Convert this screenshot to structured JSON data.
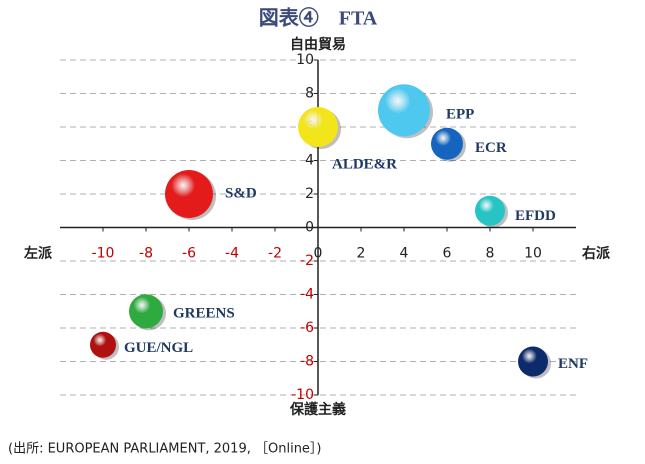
{
  "chart_data": {
    "type": "bubble",
    "title": "図表④　FTA",
    "y_label_top": "自由貿易",
    "y_label_bottom": "保護主義",
    "x_label_left": "左派",
    "x_label_right": "右派",
    "source": "(出所: EUROPEAN PARLIAMENT, 2019, ［Online］)",
    "xlim": [
      -12,
      12
    ],
    "ylim": [
      -10,
      10
    ],
    "xticks": [
      -10,
      -8,
      -6,
      -4,
      -2,
      0,
      2,
      4,
      6,
      8,
      10
    ],
    "yticks": [
      -10,
      -8,
      -6,
      -4,
      -2,
      0,
      2,
      4,
      6,
      8,
      10
    ],
    "negative_tick_color": "#c00000",
    "grid": true,
    "points": [
      {
        "label": "EPP",
        "x": 4,
        "y": 7,
        "size": 26,
        "color": "#4fc8f0"
      },
      {
        "label": "ECR",
        "x": 6,
        "y": 5,
        "size": 16,
        "color": "#1565c0"
      },
      {
        "label": "ALDE&R",
        "x": 0,
        "y": 6,
        "size": 20,
        "color": "#f2e51a"
      },
      {
        "label": "S&D",
        "x": -6,
        "y": 2,
        "size": 24,
        "color": "#e31b1b"
      },
      {
        "label": "EFDD",
        "x": 8,
        "y": 1,
        "size": 15,
        "color": "#26c4c4"
      },
      {
        "label": "GREENS",
        "x": -8,
        "y": -5,
        "size": 17,
        "color": "#2eaa3e"
      },
      {
        "label": "GUE/NGL",
        "x": -10,
        "y": -7,
        "size": 13,
        "color": "#b01010"
      },
      {
        "label": "ENF",
        "x": 10,
        "y": -8,
        "size": 15,
        "color": "#0d2a6b"
      }
    ]
  }
}
